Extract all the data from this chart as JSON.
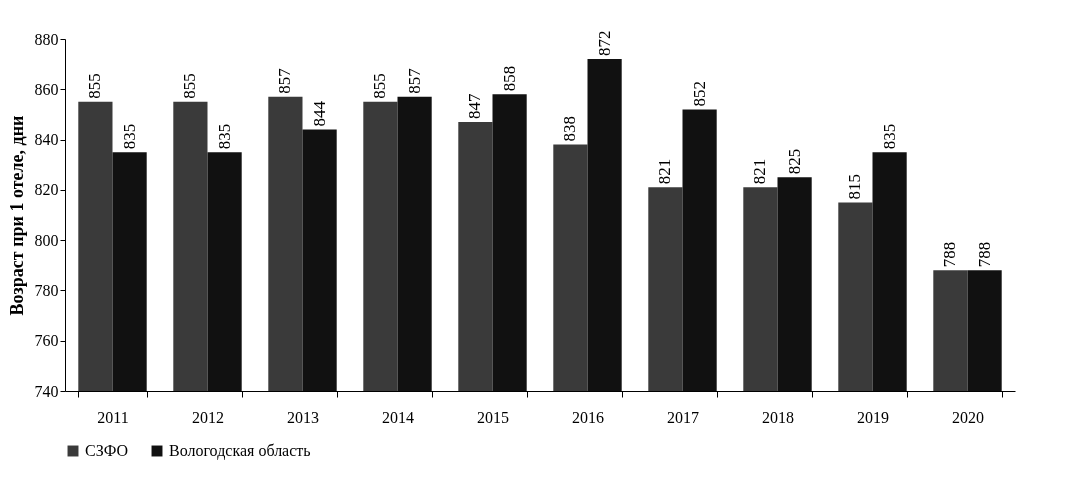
{
  "chart_data": {
    "type": "bar",
    "ylabel": "Возраст при 1 отеле, дни",
    "categories": [
      "2011",
      "2012",
      "2013",
      "2014",
      "2015",
      "2016",
      "2017",
      "2018",
      "2019",
      "2020"
    ],
    "series": [
      {
        "name": "СЗФО",
        "color": "#3a3a3a",
        "values": [
          855,
          855,
          857,
          855,
          847,
          838,
          821,
          821,
          815,
          788
        ]
      },
      {
        "name": "Вологодская область",
        "color": "#111111",
        "values": [
          835,
          835,
          844,
          857,
          858,
          872,
          852,
          825,
          835,
          788
        ]
      }
    ],
    "ylim": [
      740,
      880
    ],
    "yticks": [
      740,
      760,
      780,
      800,
      820,
      840,
      860,
      880
    ],
    "grid": false,
    "legend": "bottom",
    "data_labels": true
  }
}
